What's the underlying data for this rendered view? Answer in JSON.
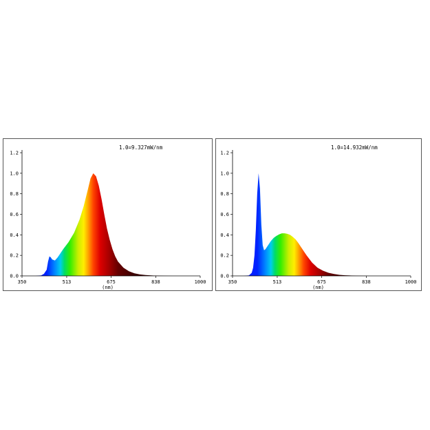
{
  "chart_data": [
    {
      "type": "area",
      "scale_note": "1.0=9.327mW/nm",
      "xlabel": "(nm)",
      "ylabel": "",
      "xlim": [
        350,
        1000
      ],
      "ylim": [
        0,
        1.2
      ],
      "x_ticks": [
        "350",
        "513",
        "675",
        "838",
        "1000"
      ],
      "y_ticks": [
        "0.0",
        "0.2",
        "0.4",
        "0.6",
        "0.8",
        "1.0",
        "1.2"
      ],
      "grid": false,
      "fill": "spectral-gradient",
      "series": [
        {
          "x": [
            350,
            380,
            400,
            420,
            430,
            440,
            445,
            450,
            455,
            460,
            470,
            480,
            500,
            520,
            540,
            560,
            575,
            590,
            600,
            610,
            620,
            630,
            640,
            650,
            660,
            670,
            680,
            690,
            700,
            720,
            740,
            760,
            780,
            800,
            830,
            870,
            900,
            1000
          ],
          "values": [
            0.0,
            0.0,
            0.0,
            0.005,
            0.02,
            0.06,
            0.14,
            0.19,
            0.18,
            0.16,
            0.15,
            0.18,
            0.26,
            0.33,
            0.42,
            0.55,
            0.68,
            0.84,
            0.95,
            1.0,
            0.97,
            0.88,
            0.75,
            0.6,
            0.46,
            0.35,
            0.26,
            0.19,
            0.14,
            0.08,
            0.045,
            0.025,
            0.014,
            0.008,
            0.003,
            0.001,
            0.0,
            0.0
          ]
        }
      ]
    },
    {
      "type": "area",
      "scale_note": "1.0=14.932mW/nm",
      "xlabel": "(nm)",
      "ylabel": "",
      "xlim": [
        350,
        1000
      ],
      "ylim": [
        0,
        1.2
      ],
      "x_ticks": [
        "350",
        "513",
        "675",
        "838",
        "1000"
      ],
      "y_ticks": [
        "0.0",
        "0.2",
        "0.4",
        "0.6",
        "0.8",
        "1.0",
        "1.2"
      ],
      "grid": false,
      "fill": "spectral-gradient",
      "series": [
        {
          "x": [
            350,
            390,
            410,
            420,
            425,
            430,
            435,
            440,
            445,
            450,
            455,
            460,
            465,
            470,
            475,
            480,
            490,
            500,
            510,
            520,
            530,
            540,
            550,
            560,
            570,
            580,
            590,
            600,
            610,
            620,
            640,
            660,
            680,
            700,
            720,
            740,
            760,
            800,
            850,
            900,
            1000
          ],
          "values": [
            0.0,
            0.0,
            0.005,
            0.03,
            0.08,
            0.2,
            0.45,
            0.8,
            1.0,
            0.85,
            0.5,
            0.3,
            0.25,
            0.26,
            0.28,
            0.3,
            0.34,
            0.37,
            0.39,
            0.405,
            0.415,
            0.415,
            0.41,
            0.4,
            0.38,
            0.355,
            0.32,
            0.28,
            0.24,
            0.2,
            0.13,
            0.08,
            0.05,
            0.03,
            0.018,
            0.01,
            0.006,
            0.002,
            0.0,
            0.0,
            0.0
          ]
        }
      ]
    }
  ]
}
